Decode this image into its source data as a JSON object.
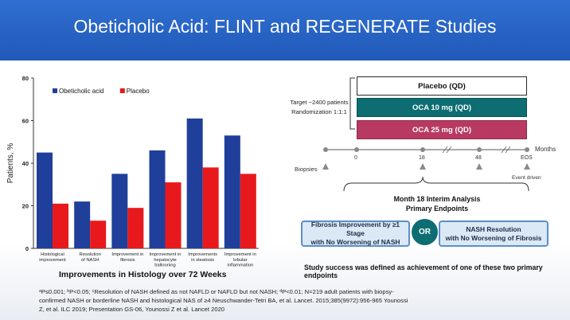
{
  "slide": {
    "title": "Obeticholic Acid: FLINT and REGENERATE Studies"
  },
  "chart_data": {
    "type": "bar",
    "ylabel": "Patients, %",
    "ylim": [
      0,
      80
    ],
    "yticks": [
      0,
      20,
      40,
      60,
      80
    ],
    "legend_position": "top-left",
    "caption": "Improvements in Histology over 72 Weeks",
    "categories": [
      [
        "Histological",
        "improvement"
      ],
      [
        "Resolution",
        "of NASH"
      ],
      [
        "Improvement in",
        "fibrosis"
      ],
      [
        "Improvement in",
        "hepatocyte",
        "ballooning"
      ],
      [
        "Improvements",
        "in steatosis"
      ],
      [
        "Improvement in",
        "lobular",
        "inflammation"
      ]
    ],
    "series": [
      {
        "name": "Obeticholic acid",
        "color": "#1f3f9b",
        "values": [
          45,
          22,
          35,
          46,
          61,
          53
        ]
      },
      {
        "name": "Placebo",
        "color": "#e8191c",
        "values": [
          21,
          13,
          19,
          31,
          38,
          35
        ]
      }
    ]
  },
  "trial": {
    "arms": [
      "Placebo (QD)",
      "OCA 10 mg (QD)",
      "OCA 25 mg (QD)"
    ],
    "target_lines": [
      "Target ~2400 patients",
      "Randomization 1:1:1"
    ],
    "timeline_points": [
      "0",
      "18",
      "48",
      "EOS"
    ],
    "months_label": "Months",
    "biopsies_label": "Biopsies",
    "event_driven_label": "Event driven",
    "interim_lines": [
      "Month 18 Interim Analysis",
      "Primary Endpoints"
    ],
    "endpoint_left": [
      "Fibrosis Improvement by ≥1 Stage",
      "with No Worsening of NASH"
    ],
    "endpoint_right": [
      "NASH Resolution",
      "with No Worsening of Fibrosis"
    ],
    "or_label": "OR",
    "success_text": "Study success was defined as achievement of one of these two primary endpoints"
  },
  "footnote": {
    "line1": "ᵃP≤0.001; ᵇP<0.05; ᶜResolution of NASH defined as not NAFLD or NAFLD but not NASH; ᵈP<0.01; N=219 adult patients with biopsy-",
    "line2": "confirmed NASH or borderline NASH and histological NAS of ≥4 Neuschwander-Tetri BA, et al. Lancet. 2015;385(9972):956-965 Younossi",
    "line3": "Z, et al. ILC 2019; Presentation GS-06, Younossi Z et al. Lancet 2020"
  }
}
